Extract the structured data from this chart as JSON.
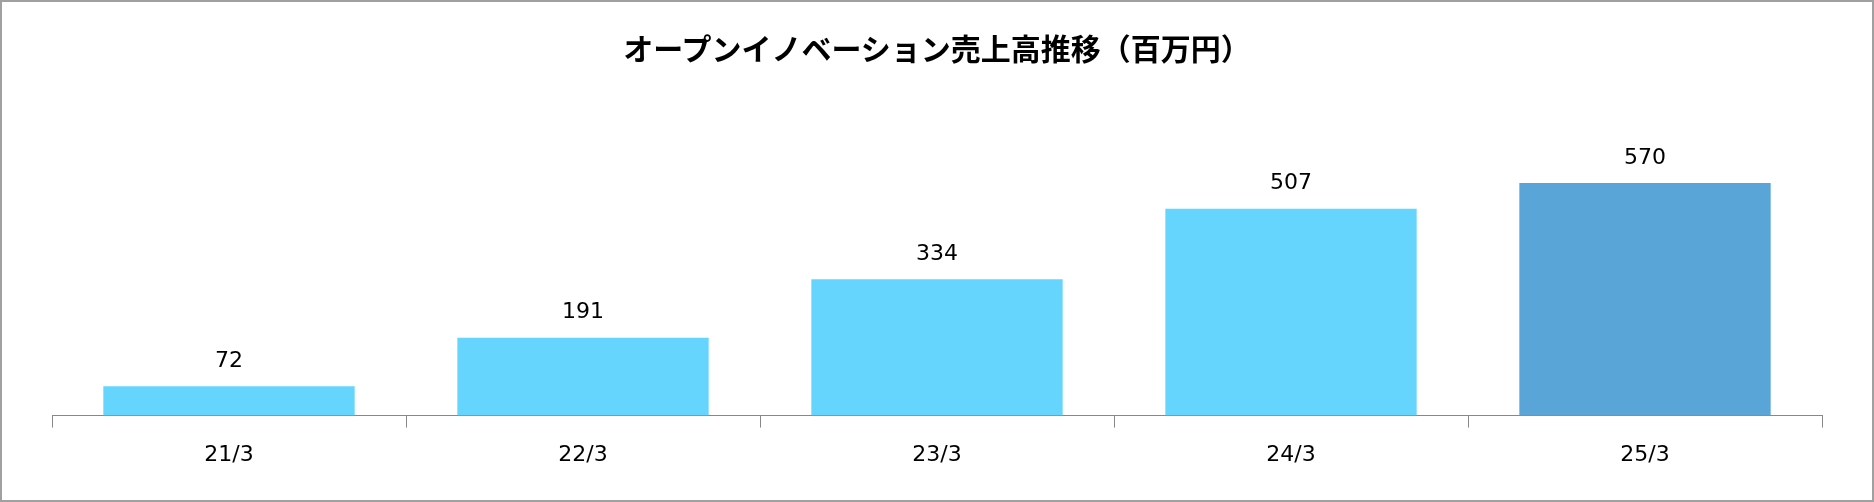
{
  "chart_data": {
    "type": "bar",
    "title": "オープンイノベーション売上高推移（百万円）",
    "categories": [
      "21/3",
      "22/3",
      "23/3",
      "24/3",
      "25/3"
    ],
    "values": [
      72,
      191,
      334,
      507,
      570
    ],
    "colors": [
      "#66d5fd",
      "#66d5fd",
      "#66d5fd",
      "#66d5fd",
      "#5aa5d8"
    ],
    "data_labels": true,
    "grid": false,
    "legend": false,
    "tick_labels": "x"
  }
}
